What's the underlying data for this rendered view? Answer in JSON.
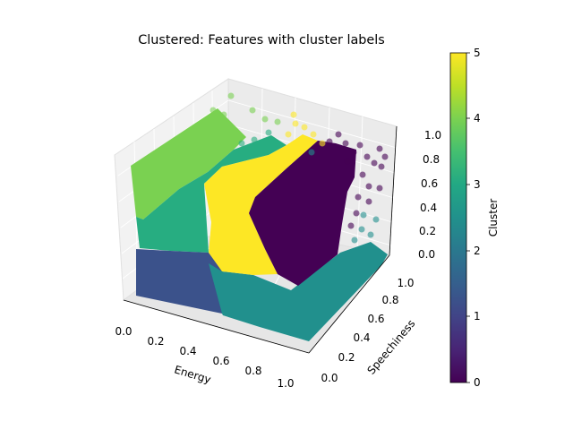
{
  "chart_data": {
    "type": "scatter",
    "projection": "3d",
    "title": "Clustered: Features with cluster labels",
    "xlabel": "Energy",
    "ylabel": "Speechiness",
    "zlabel": "",
    "xlim": [
      0,
      1
    ],
    "ylim": [
      0,
      1
    ],
    "zlim": [
      0,
      1
    ],
    "x_ticks": [
      "0.0",
      "0.2",
      "0.4",
      "0.6",
      "0.8",
      "1.0"
    ],
    "y_ticks": [
      "0.0",
      "0.2",
      "0.4",
      "0.6",
      "0.8",
      "1.0"
    ],
    "z_ticks": [
      "0.0",
      "0.2",
      "0.4",
      "0.6",
      "0.8",
      "1.0"
    ],
    "grid": true,
    "colormap": "viridis",
    "colorbar": {
      "label": "Cluster",
      "range": [
        0,
        5
      ],
      "ticks": [
        "0",
        "1",
        "2",
        "3",
        "4",
        "5"
      ]
    },
    "cluster_colors": [
      "#440154",
      "#3b528b",
      "#21908d",
      "#27ad81",
      "#7ad151",
      "#fde725"
    ],
    "clusters": [
      {
        "label": 0,
        "region": "high energy, high speechiness, mid-high third feature"
      },
      {
        "label": 1,
        "region": "low energy, low third feature"
      },
      {
        "label": 2,
        "region": "high energy, low third feature"
      },
      {
        "label": 3,
        "region": "low-mid energy, mid third feature"
      },
      {
        "label": 4,
        "region": "low energy, high third feature"
      },
      {
        "label": 5,
        "region": "mid energy, mid-high third feature"
      }
    ]
  }
}
